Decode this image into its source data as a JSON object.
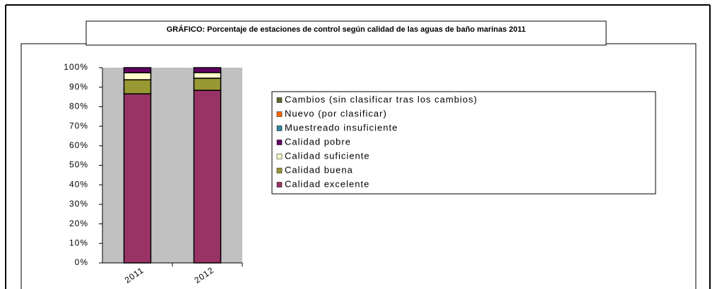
{
  "chart_data": {
    "type": "stacked_bar",
    "title": "GRÁFICO: Porcentaje de estaciones de control según calidad de las aguas de baño marinas 2011",
    "categories": [
      "2011",
      "2012"
    ],
    "series": [
      {
        "name": "Calidad excelente",
        "color": "#993366",
        "values": [
          86.6,
          88.4
        ]
      },
      {
        "name": "Calidad buena",
        "color": "#999933",
        "values": [
          7.2,
          6.2
        ]
      },
      {
        "name": "Calidad suficiente",
        "color": "#ffffcc",
        "values": [
          3.6,
          2.9
        ]
      },
      {
        "name": "Calidad pobre",
        "color": "#660066",
        "values": [
          2.6,
          2.5
        ]
      },
      {
        "name": "Muestreado insuficiente",
        "color": "#31859c",
        "values": [
          0,
          0
        ]
      },
      {
        "name": "Nuevo (por clasificar)",
        "color": "#ff6600",
        "values": [
          0,
          0
        ]
      },
      {
        "name": "Cambios (sin clasificar tras los cambios)",
        "color": "#666633",
        "values": [
          0,
          0
        ]
      }
    ],
    "ylim": [
      0,
      100
    ],
    "yticks": [
      {
        "value": 0,
        "label": "0%"
      },
      {
        "value": 10,
        "label": "10%"
      },
      {
        "value": 20,
        "label": "20%"
      },
      {
        "value": 30,
        "label": "30%"
      },
      {
        "value": 40,
        "label": "40%"
      },
      {
        "value": 50,
        "label": "50%"
      },
      {
        "value": 60,
        "label": "60%"
      },
      {
        "value": 70,
        "label": "70%"
      },
      {
        "value": 80,
        "label": "80%"
      },
      {
        "value": 90,
        "label": "90%"
      },
      {
        "value": 100,
        "label": "100%"
      }
    ],
    "grid": false,
    "legend": "right",
    "plot_background": "#c0c0c0"
  }
}
